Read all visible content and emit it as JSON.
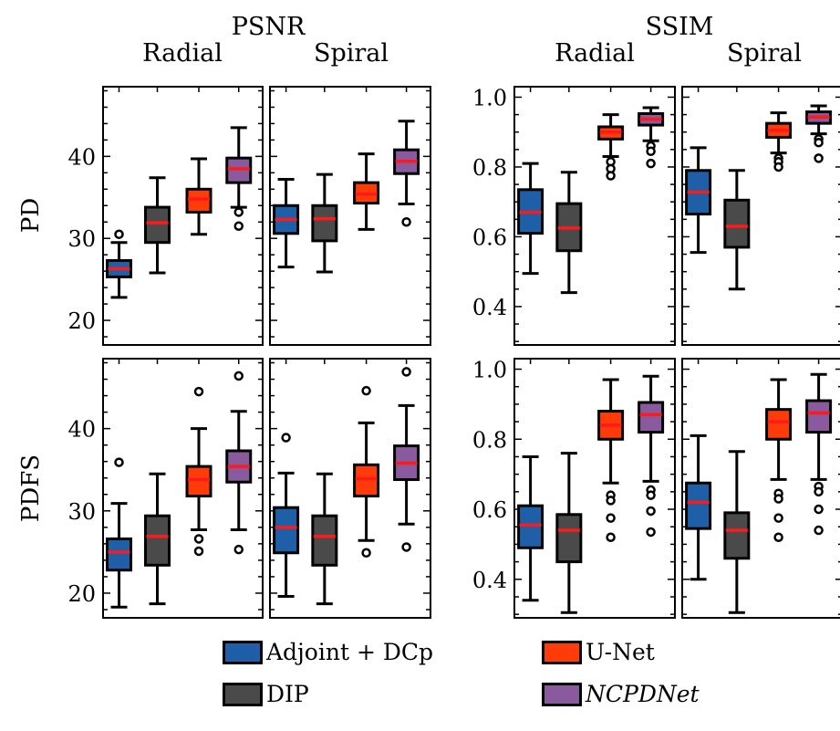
{
  "header": {
    "groups": [
      {
        "title": "PSNR",
        "cols": [
          "Radial",
          "Spiral"
        ]
      },
      {
        "title": "SSIM",
        "cols": [
          "Radial",
          "Spiral"
        ]
      }
    ],
    "rows": [
      "PD",
      "PDFS"
    ]
  },
  "legend": [
    {
      "label": "Adjoint + DCp",
      "color": "#1f5fa8",
      "italic": false
    },
    {
      "label": "U-Net",
      "color": "#ff3b0a",
      "italic": false
    },
    {
      "label": "DIP",
      "color": "#4a4a4a",
      "italic": false
    },
    {
      "label": "NCPDNet",
      "color": "#8a5a9e",
      "italic": true
    }
  ],
  "chart_data": [
    {
      "type": "box",
      "metric": "PSNR",
      "row": "PD",
      "column": "Radial",
      "ylim": [
        17,
        48.5
      ],
      "yticks": [
        20,
        30,
        40
      ],
      "series": [
        {
          "name": "Adjoint + DCp",
          "whislo": 22.8,
          "q1": 25.3,
          "med": 26.3,
          "q3": 27.3,
          "whishi": 29.5,
          "fliers": [
            30.5
          ]
        },
        {
          "name": "DIP",
          "whislo": 25.8,
          "q1": 29.5,
          "med": 31.9,
          "q3": 33.8,
          "whishi": 37.4,
          "fliers": []
        },
        {
          "name": "U-Net",
          "whislo": 30.5,
          "q1": 33.2,
          "med": 34.8,
          "q3": 36.0,
          "whishi": 39.7,
          "fliers": []
        },
        {
          "name": "NCPDNet",
          "whislo": 33.8,
          "q1": 36.8,
          "med": 38.5,
          "q3": 39.8,
          "whishi": 43.5,
          "fliers": [
            33.2,
            31.5
          ]
        }
      ]
    },
    {
      "type": "box",
      "metric": "PSNR",
      "row": "PD",
      "column": "Spiral",
      "ylim": [
        17,
        48.5
      ],
      "yticks": [
        20,
        30,
        40
      ],
      "series": [
        {
          "name": "Adjoint + DCp",
          "whislo": 26.5,
          "q1": 30.6,
          "med": 32.3,
          "q3": 34.0,
          "whishi": 37.2,
          "fliers": []
        },
        {
          "name": "DIP",
          "whislo": 25.9,
          "q1": 29.7,
          "med": 32.4,
          "q3": 34.0,
          "whishi": 37.8,
          "fliers": []
        },
        {
          "name": "U-Net",
          "whislo": 31.1,
          "q1": 34.3,
          "med": 35.4,
          "q3": 36.8,
          "whishi": 40.3,
          "fliers": []
        },
        {
          "name": "NCPDNet",
          "whislo": 34.2,
          "q1": 37.9,
          "med": 39.4,
          "q3": 40.8,
          "whishi": 44.3,
          "fliers": [
            32.0
          ]
        }
      ]
    },
    {
      "type": "box",
      "metric": "SSIM",
      "row": "PD",
      "column": "Radial",
      "ylim": [
        0.29,
        1.03
      ],
      "yticks": [
        0.4,
        0.6,
        0.8,
        1.0
      ],
      "series": [
        {
          "name": "Adjoint + DCp",
          "whislo": 0.495,
          "q1": 0.61,
          "med": 0.67,
          "q3": 0.735,
          "whishi": 0.81,
          "fliers": []
        },
        {
          "name": "DIP",
          "whislo": 0.44,
          "q1": 0.56,
          "med": 0.625,
          "q3": 0.695,
          "whishi": 0.785,
          "fliers": []
        },
        {
          "name": "U-Net",
          "whislo": 0.83,
          "q1": 0.88,
          "med": 0.9,
          "q3": 0.915,
          "whishi": 0.95,
          "fliers": [
            0.815,
            0.795,
            0.775
          ]
        },
        {
          "name": "NCPDNet",
          "whislo": 0.875,
          "q1": 0.92,
          "med": 0.937,
          "q3": 0.953,
          "whishi": 0.97,
          "fliers": [
            0.86,
            0.845,
            0.81
          ]
        }
      ]
    },
    {
      "type": "box",
      "metric": "SSIM",
      "row": "PD",
      "column": "Spiral",
      "ylim": [
        0.29,
        1.03
      ],
      "yticks": [
        0.4,
        0.6,
        0.8,
        1.0
      ],
      "series": [
        {
          "name": "Adjoint + DCp",
          "whislo": 0.555,
          "q1": 0.665,
          "med": 0.728,
          "q3": 0.79,
          "whishi": 0.855,
          "fliers": []
        },
        {
          "name": "DIP",
          "whislo": 0.45,
          "q1": 0.57,
          "med": 0.63,
          "q3": 0.705,
          "whishi": 0.79,
          "fliers": []
        },
        {
          "name": "U-Net",
          "whislo": 0.84,
          "q1": 0.885,
          "med": 0.905,
          "q3": 0.925,
          "whishi": 0.955,
          "fliers": [
            0.825,
            0.815,
            0.8
          ]
        },
        {
          "name": "NCPDNet",
          "whislo": 0.895,
          "q1": 0.925,
          "med": 0.943,
          "q3": 0.958,
          "whishi": 0.975,
          "fliers": [
            0.88,
            0.87,
            0.825
          ]
        }
      ]
    },
    {
      "type": "box",
      "metric": "PSNR",
      "row": "PDFS",
      "column": "Radial",
      "ylim": [
        17,
        48.5
      ],
      "yticks": [
        20,
        30,
        40
      ],
      "series": [
        {
          "name": "Adjoint + DCp",
          "whislo": 18.3,
          "q1": 22.8,
          "med": 25.0,
          "q3": 26.6,
          "whishi": 30.9,
          "fliers": [
            35.9
          ]
        },
        {
          "name": "DIP",
          "whislo": 18.7,
          "q1": 23.4,
          "med": 26.9,
          "q3": 29.4,
          "whishi": 34.5,
          "fliers": []
        },
        {
          "name": "U-Net",
          "whislo": 27.7,
          "q1": 31.8,
          "med": 33.8,
          "q3": 35.4,
          "whishi": 40.0,
          "fliers": [
            26.6,
            25.1,
            44.5
          ]
        },
        {
          "name": "NCPDNet",
          "whislo": 27.7,
          "q1": 33.5,
          "med": 35.4,
          "q3": 37.3,
          "whishi": 42.1,
          "fliers": [
            25.3,
            46.4
          ]
        }
      ]
    },
    {
      "type": "box",
      "metric": "PSNR",
      "row": "PDFS",
      "column": "Spiral",
      "ylim": [
        17,
        48.5
      ],
      "yticks": [
        20,
        30,
        40
      ],
      "series": [
        {
          "name": "Adjoint + DCp",
          "whislo": 19.6,
          "q1": 24.9,
          "med": 28.0,
          "q3": 30.4,
          "whishi": 34.6,
          "fliers": [
            38.9
          ]
        },
        {
          "name": "DIP",
          "whislo": 18.7,
          "q1": 23.4,
          "med": 26.9,
          "q3": 29.4,
          "whishi": 34.5,
          "fliers": []
        },
        {
          "name": "U-Net",
          "whislo": 26.4,
          "q1": 31.8,
          "med": 33.9,
          "q3": 35.6,
          "whishi": 40.7,
          "fliers": [
            24.9,
            44.6
          ]
        },
        {
          "name": "NCPDNet",
          "whislo": 28.4,
          "q1": 33.8,
          "med": 35.8,
          "q3": 37.9,
          "whishi": 42.8,
          "fliers": [
            25.6,
            46.9
          ]
        }
      ]
    },
    {
      "type": "box",
      "metric": "SSIM",
      "row": "PDFS",
      "column": "Radial",
      "ylim": [
        0.29,
        1.03
      ],
      "yticks": [
        0.4,
        0.6,
        0.8,
        1.0
      ],
      "series": [
        {
          "name": "Adjoint + DCp",
          "whislo": 0.34,
          "q1": 0.49,
          "med": 0.555,
          "q3": 0.61,
          "whishi": 0.75,
          "fliers": []
        },
        {
          "name": "DIP",
          "whislo": 0.305,
          "q1": 0.45,
          "med": 0.54,
          "q3": 0.585,
          "whishi": 0.76,
          "fliers": []
        },
        {
          "name": "U-Net",
          "whislo": 0.675,
          "q1": 0.8,
          "med": 0.84,
          "q3": 0.88,
          "whishi": 0.97,
          "fliers": [
            0.64,
            0.625,
            0.575,
            0.52
          ]
        },
        {
          "name": "NCPDNet",
          "whislo": 0.68,
          "q1": 0.82,
          "med": 0.87,
          "q3": 0.905,
          "whishi": 0.98,
          "fliers": [
            0.655,
            0.64,
            0.595,
            0.535
          ]
        }
      ]
    },
    {
      "type": "box",
      "metric": "SSIM",
      "row": "PDFS",
      "column": "Spiral",
      "ylim": [
        0.29,
        1.03
      ],
      "yticks": [
        0.4,
        0.6,
        0.8,
        1.0
      ],
      "series": [
        {
          "name": "Adjoint + DCp",
          "whislo": 0.4,
          "q1": 0.545,
          "med": 0.62,
          "q3": 0.675,
          "whishi": 0.81,
          "fliers": []
        },
        {
          "name": "DIP",
          "whislo": 0.305,
          "q1": 0.46,
          "med": 0.54,
          "q3": 0.59,
          "whishi": 0.765,
          "fliers": []
        },
        {
          "name": "U-Net",
          "whislo": 0.685,
          "q1": 0.8,
          "med": 0.85,
          "q3": 0.885,
          "whishi": 0.97,
          "fliers": [
            0.645,
            0.63,
            0.575,
            0.52
          ]
        },
        {
          "name": "NCPDNet",
          "whislo": 0.685,
          "q1": 0.82,
          "med": 0.875,
          "q3": 0.91,
          "whishi": 0.985,
          "fliers": [
            0.665,
            0.65,
            0.6,
            0.54
          ]
        }
      ]
    }
  ]
}
